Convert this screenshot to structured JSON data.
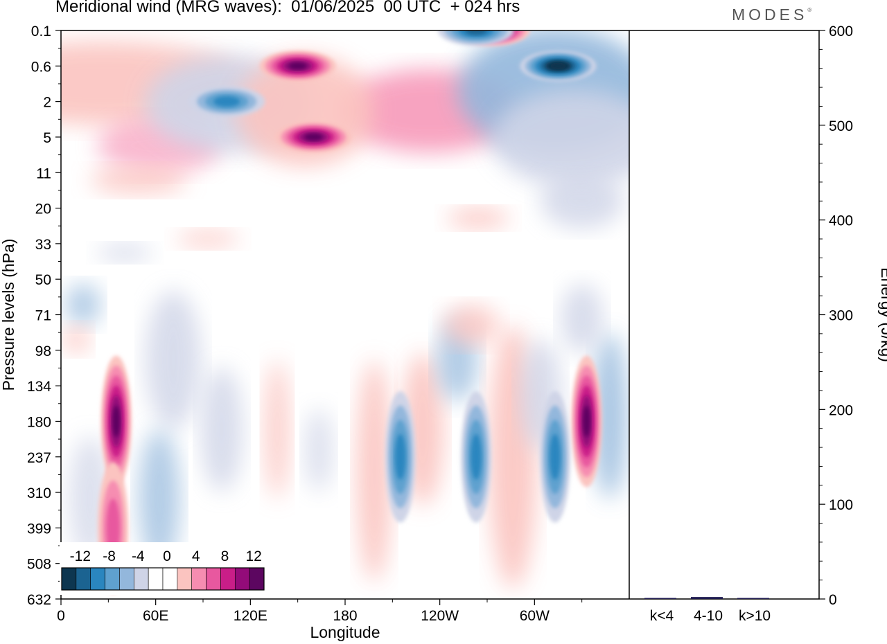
{
  "title": "Meridional wind (MRG waves):  01/06/2025  00 UTC  + 024 hrs",
  "logo": {
    "text": "MODES",
    "mark": "®"
  },
  "colors": {
    "levels": [
      "#0d3650",
      "#1b6391",
      "#2a86bf",
      "#5fa1cf",
      "#93b7dc",
      "#cfd4e7",
      "#ffffff",
      "#ffffff",
      "#fbc4c0",
      "#f68db1",
      "#e8589f",
      "#c91e88",
      "#930b79",
      "#5c0660"
    ]
  },
  "chart_data": [
    {
      "type": "heatmap",
      "title": "Meridional wind (MRG waves):  01/06/2025  00 UTC  + 024 hrs",
      "xlabel": "Longitude",
      "ylabel": "Pressure levels (hPa)",
      "x_ticks": [
        "0",
        "60E",
        "120E",
        "180",
        "120W",
        "60W"
      ],
      "x_tick_degrees": [
        0,
        60,
        120,
        180,
        240,
        300
      ],
      "x_range_degrees": [
        0,
        360
      ],
      "y_ticks": [
        "0.1",
        "0.6",
        "2",
        "5",
        "11",
        "20",
        "33",
        "50",
        "71",
        "98",
        "134",
        "180",
        "237",
        "310",
        "399",
        "508",
        "632"
      ],
      "y_scale": "log-pressure",
      "colorbar": {
        "labels": [
          "-12",
          "-8",
          "-4",
          "0",
          "4",
          "8",
          "12"
        ],
        "bins": [
          -14,
          -12,
          -10,
          -8,
          -6,
          -4,
          -2,
          0,
          2,
          4,
          6,
          8,
          10,
          12,
          14
        ],
        "placement": "bottom-left inset"
      },
      "features": [
        {
          "lon": 35,
          "level": "180",
          "value": 12
        },
        {
          "lon": 33,
          "level": "399",
          "value": 6
        },
        {
          "lon": 150,
          "level": "0.6",
          "value": 12
        },
        {
          "lon": 160,
          "level": "5",
          "value": 12
        },
        {
          "lon": 273,
          "level": "0.1",
          "value": 14
        },
        {
          "lon": 333,
          "level": "180",
          "value": 12
        },
        {
          "lon": 315,
          "level": "0.6",
          "value": -14
        },
        {
          "lon": 263,
          "level": "0.1",
          "value": -10
        },
        {
          "lon": 105,
          "level": "2",
          "value": -8
        },
        {
          "lon": 215,
          "level": "237",
          "value": -8
        },
        {
          "lon": 313,
          "level": "237",
          "value": -8
        },
        {
          "lon": 263,
          "level": "237",
          "value": -8
        }
      ]
    },
    {
      "type": "bar",
      "ylabel": "Energy (J/kg)",
      "categories": [
        "k<4",
        "4-10",
        "k>10"
      ],
      "values": [
        0,
        1,
        0
      ],
      "ylim": [
        0,
        600
      ],
      "y_ticks": [
        "0",
        "100",
        "200",
        "300",
        "400",
        "500",
        "600"
      ]
    }
  ]
}
